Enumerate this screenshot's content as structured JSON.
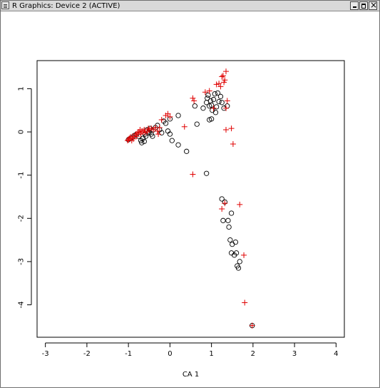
{
  "window": {
    "title": "R Graphics: Device 2 (ACTIVE)",
    "controls": [
      "minimize",
      "maximize",
      "close"
    ]
  },
  "colors": {
    "rows": "#000000",
    "columns": "#e00000",
    "titlebar": "#d9d9d9"
  },
  "chart_data": {
    "type": "scatter",
    "xlabel": "CA 1",
    "ylabel": "",
    "xlim": [
      -3.2,
      4.2
    ],
    "ylim": [
      -4.75,
      1.65
    ],
    "xticks": [
      -3,
      -2,
      -1,
      0,
      1,
      2,
      3,
      4
    ],
    "yticks": [
      -4,
      -3,
      -2,
      -1,
      0,
      1
    ],
    "grid": false,
    "series": [
      {
        "marker": "circle",
        "color": "#000000",
        "points": [
          [
            -1.0,
            -0.18
          ],
          [
            -0.95,
            -0.15
          ],
          [
            -0.9,
            -0.12
          ],
          [
            -0.85,
            -0.08
          ],
          [
            -0.8,
            -0.05
          ],
          [
            -0.75,
            -0.1
          ],
          [
            -0.7,
            -0.2
          ],
          [
            -0.68,
            -0.25
          ],
          [
            -0.65,
            -0.15
          ],
          [
            -0.62,
            -0.22
          ],
          [
            -0.6,
            -0.05
          ],
          [
            -0.58,
            -0.1
          ],
          [
            -0.55,
            0.05
          ],
          [
            -0.52,
            -0.02
          ],
          [
            -0.5,
            0.0
          ],
          [
            -0.48,
            0.08
          ],
          [
            -0.45,
            -0.05
          ],
          [
            -0.42,
            -0.1
          ],
          [
            -0.4,
            0.05
          ],
          [
            -0.35,
            0.1
          ],
          [
            -0.3,
            0.15
          ],
          [
            -0.25,
            0.05
          ],
          [
            -0.2,
            -0.02
          ],
          [
            -0.15,
            0.25
          ],
          [
            -0.1,
            0.2
          ],
          [
            -0.05,
            0.02
          ],
          [
            0.0,
            0.3
          ],
          [
            0.0,
            -0.05
          ],
          [
            0.05,
            -0.2
          ],
          [
            0.2,
            0.38
          ],
          [
            0.2,
            -0.3
          ],
          [
            0.4,
            -0.45
          ],
          [
            0.6,
            0.6
          ],
          [
            0.65,
            0.18
          ],
          [
            0.8,
            0.55
          ],
          [
            0.88,
            0.68
          ],
          [
            0.9,
            0.78
          ],
          [
            0.92,
            0.85
          ],
          [
            0.95,
            0.6
          ],
          [
            0.98,
            0.72
          ],
          [
            1.0,
            0.62
          ],
          [
            1.02,
            0.5
          ],
          [
            1.05,
            0.75
          ],
          [
            1.08,
            0.88
          ],
          [
            1.1,
            0.45
          ],
          [
            1.12,
            0.58
          ],
          [
            1.15,
            0.9
          ],
          [
            1.18,
            0.7
          ],
          [
            1.22,
            0.82
          ],
          [
            1.25,
            0.68
          ],
          [
            1.3,
            0.55
          ],
          [
            1.38,
            0.6
          ],
          [
            0.95,
            0.28
          ],
          [
            1.0,
            0.3
          ],
          [
            0.88,
            -0.96
          ],
          [
            1.25,
            -1.55
          ],
          [
            1.28,
            -2.05
          ],
          [
            1.32,
            -1.62
          ],
          [
            1.4,
            -2.05
          ],
          [
            1.42,
            -2.2
          ],
          [
            1.45,
            -2.5
          ],
          [
            1.48,
            -1.88
          ],
          [
            1.5,
            -2.6
          ],
          [
            1.55,
            -2.85
          ],
          [
            1.58,
            -2.55
          ],
          [
            1.6,
            -2.8
          ],
          [
            1.62,
            -3.1
          ],
          [
            1.65,
            -3.15
          ],
          [
            1.68,
            -3.0
          ],
          [
            1.48,
            -2.8
          ],
          [
            1.98,
            -4.48
          ]
        ]
      },
      {
        "marker": "plus",
        "color": "#e00000",
        "points": [
          [
            -1.0,
            -0.18
          ],
          [
            -1.02,
            -0.2
          ],
          [
            -0.98,
            -0.15
          ],
          [
            -0.95,
            -0.12
          ],
          [
            -0.92,
            -0.2
          ],
          [
            -0.9,
            -0.1
          ],
          [
            -0.88,
            -0.16
          ],
          [
            -0.85,
            -0.1
          ],
          [
            -0.82,
            -0.05
          ],
          [
            -0.8,
            -0.1
          ],
          [
            -0.78,
            -0.02
          ],
          [
            -0.75,
            0.0
          ],
          [
            -0.72,
            0.05
          ],
          [
            -0.7,
            -0.05
          ],
          [
            -0.68,
            0.02
          ],
          [
            -0.65,
            0.02
          ],
          [
            -0.62,
            0.05
          ],
          [
            -0.6,
            -0.02
          ],
          [
            -0.55,
            0.0
          ],
          [
            -0.52,
            0.08
          ],
          [
            -0.5,
            0.05
          ],
          [
            -0.45,
            0.08
          ],
          [
            -0.4,
            0.05
          ],
          [
            -0.35,
            0.1
          ],
          [
            -0.3,
            0.02
          ],
          [
            -0.28,
            -0.05
          ],
          [
            -0.25,
            0.1
          ],
          [
            -0.2,
            0.28
          ],
          [
            -0.1,
            0.38
          ],
          [
            -0.05,
            0.42
          ],
          [
            0.0,
            0.35
          ],
          [
            0.35,
            0.12
          ],
          [
            0.55,
            0.78
          ],
          [
            0.58,
            0.72
          ],
          [
            0.55,
            -0.98
          ],
          [
            0.85,
            0.92
          ],
          [
            0.95,
            0.95
          ],
          [
            1.05,
            0.55
          ],
          [
            1.12,
            1.1
          ],
          [
            1.18,
            1.12
          ],
          [
            1.22,
            1.05
          ],
          [
            1.25,
            1.28
          ],
          [
            1.28,
            1.3
          ],
          [
            1.3,
            1.15
          ],
          [
            1.32,
            1.2
          ],
          [
            1.35,
            1.4
          ],
          [
            1.35,
            0.55
          ],
          [
            1.38,
            0.72
          ],
          [
            1.35,
            0.05
          ],
          [
            1.48,
            0.08
          ],
          [
            1.52,
            -0.28
          ],
          [
            1.25,
            -1.78
          ],
          [
            1.32,
            -1.65
          ],
          [
            1.68,
            -1.68
          ],
          [
            1.78,
            -2.85
          ],
          [
            1.8,
            -3.95
          ],
          [
            1.98,
            -4.48
          ]
        ]
      }
    ]
  }
}
